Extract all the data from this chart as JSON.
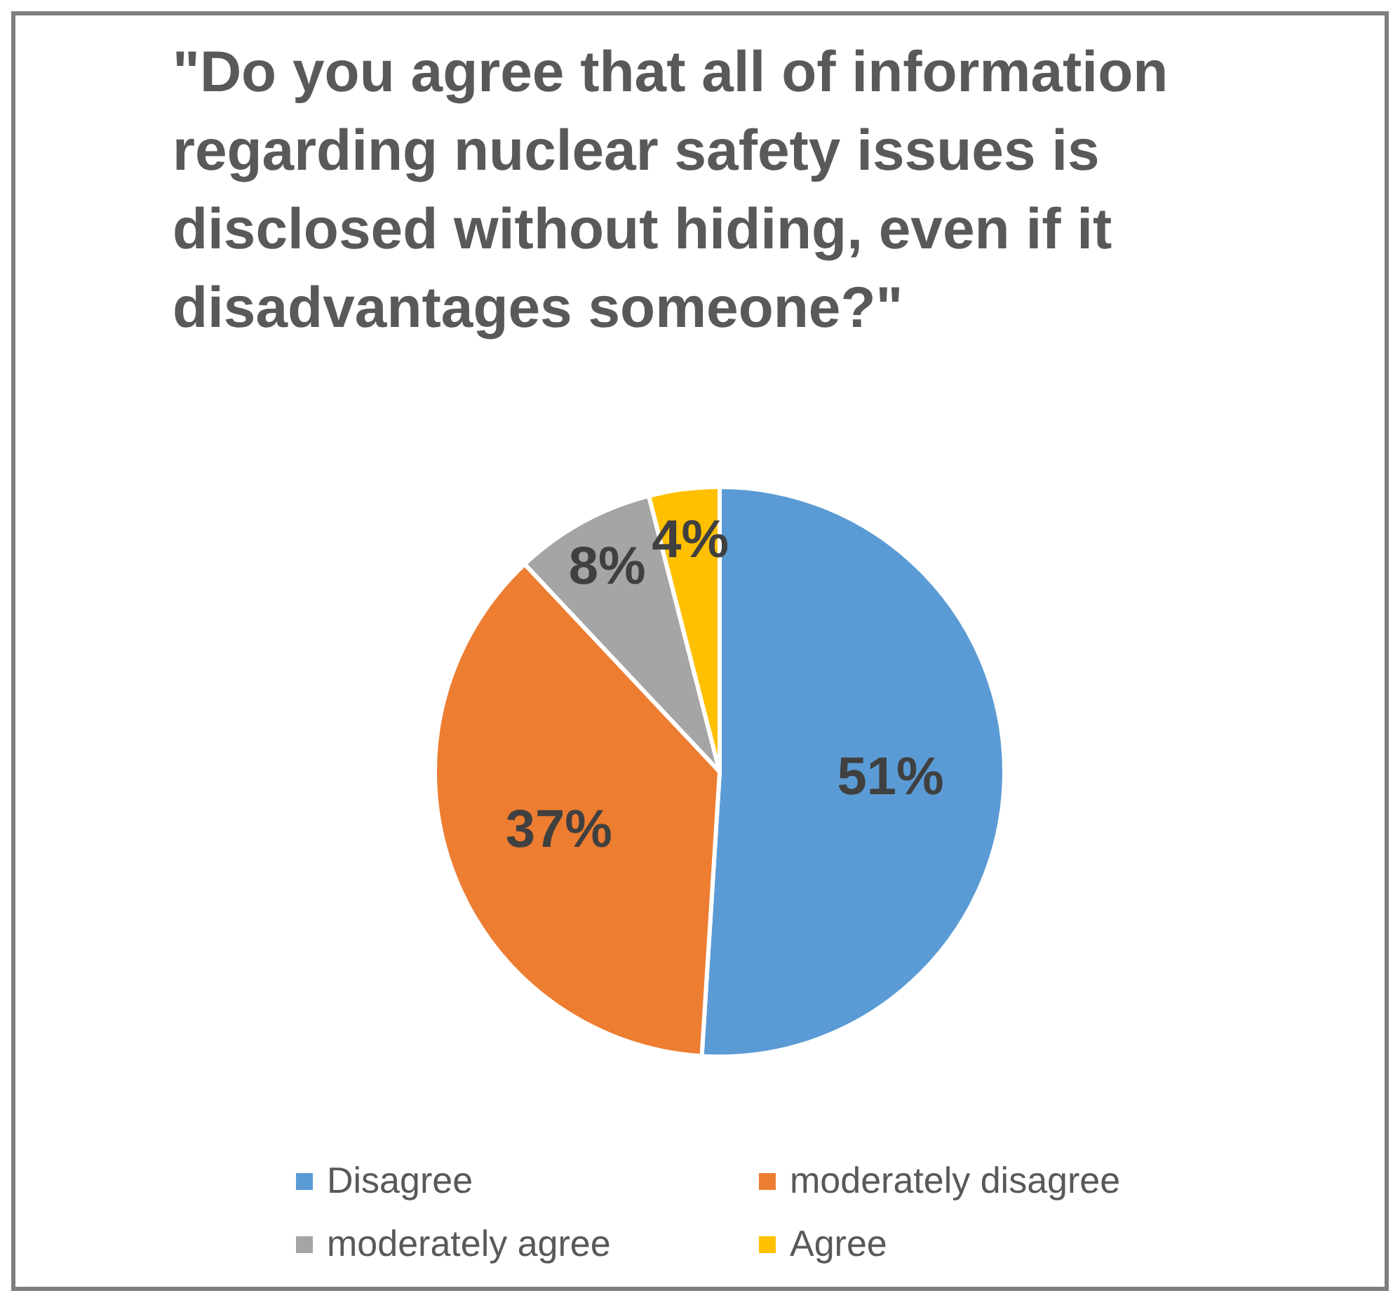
{
  "chart_data": {
    "type": "pie",
    "title": "\"Do you agree that all of information regarding nuclear safety issues is disclosed without hiding, even if it disadvantages someone?\"",
    "categories": [
      "Disagree",
      "moderately disagree",
      "moderately agree",
      "Agree"
    ],
    "values": [
      51,
      37,
      8,
      4
    ],
    "colors": [
      "#5b9bd5",
      "#ed7d31",
      "#a5a5a5",
      "#ffc000"
    ],
    "value_labels": [
      "51%",
      "37%",
      "8%",
      "4%"
    ],
    "legend": "bottom"
  }
}
